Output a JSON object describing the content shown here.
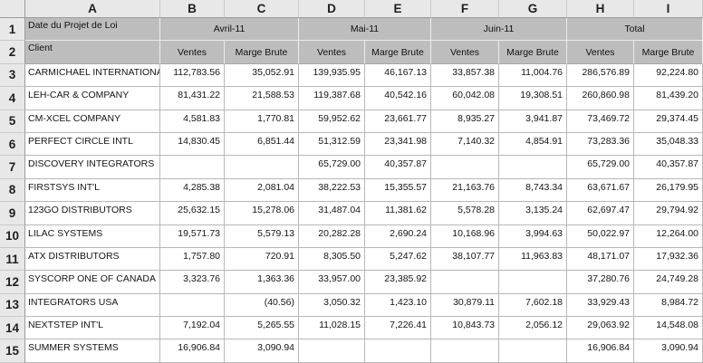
{
  "grid": {
    "column_letters": [
      "A",
      "B",
      "C",
      "D",
      "E",
      "F",
      "G",
      "H",
      "I"
    ],
    "row_numbers": [
      "1",
      "2",
      "3",
      "4",
      "5",
      "6",
      "7",
      "8",
      "9",
      "10",
      "11",
      "12",
      "13",
      "14",
      "15"
    ]
  },
  "table": {
    "title_cell": "Date du Projet de Loi",
    "client_header": "Client",
    "month_groups": [
      {
        "label": "Avril-11"
      },
      {
        "label": "Mai-11"
      },
      {
        "label": "Juin-11"
      },
      {
        "label": "Total"
      }
    ],
    "sub_headers": [
      "Ventes",
      "Marge Brute",
      "Ventes",
      "Marge Brute",
      "Ventes",
      "Marge Brute",
      "Ventes",
      "Marge Brute"
    ],
    "rows": [
      {
        "client": "CARMICHAEL INTERNATIONAL",
        "values": [
          "112,783.56",
          "35,052.91",
          "139,935.95",
          "46,167.13",
          "33,857.38",
          "11,004.76",
          "286,576.89",
          "92,224.80"
        ]
      },
      {
        "client": "LEH-CAR & COMPANY",
        "values": [
          "81,431.22",
          "21,588.53",
          "119,387.68",
          "40,542.16",
          "60,042.08",
          "19,308.51",
          "260,860.98",
          "81,439.20"
        ]
      },
      {
        "client": "CM-XCEL COMPANY",
        "values": [
          "4,581.83",
          "1,770.81",
          "59,952.62",
          "23,661.77",
          "8,935.27",
          "3,941.87",
          "73,469.72",
          "29,374.45"
        ]
      },
      {
        "client": "PERFECT CIRCLE INTL",
        "values": [
          "14,830.45",
          "6,851.44",
          "51,312.59",
          "23,341.98",
          "7,140.32",
          "4,854.91",
          "73,283.36",
          "35,048.33"
        ]
      },
      {
        "client": "DISCOVERY INTEGRATORS",
        "values": [
          "",
          "",
          "65,729.00",
          "40,357.87",
          "",
          "",
          "65,729.00",
          "40,357.87"
        ]
      },
      {
        "client": "FIRSTSYS INT'L",
        "values": [
          "4,285.38",
          "2,081.04",
          "38,222.53",
          "15,355.57",
          "21,163.76",
          "8,743.34",
          "63,671.67",
          "26,179.95"
        ]
      },
      {
        "client": "123GO DISTRIBUTORS",
        "values": [
          "25,632.15",
          "15,278.06",
          "31,487.04",
          "11,381.62",
          "5,578.28",
          "3,135.24",
          "62,697.47",
          "29,794.92"
        ]
      },
      {
        "client": "LILAC SYSTEMS",
        "values": [
          "19,571.73",
          "5,579.13",
          "20,282.28",
          "2,690.24",
          "10,168.96",
          "3,994.63",
          "50,022.97",
          "12,264.00"
        ]
      },
      {
        "client": "ATX DISTRIBUTORS",
        "values": [
          "1,757.80",
          "720.91",
          "8,305.50",
          "5,247.62",
          "38,107.77",
          "11,963.83",
          "48,171.07",
          "17,932.36"
        ]
      },
      {
        "client": "SYSCORP ONE OF CANADA",
        "values": [
          "3,323.76",
          "1,363.36",
          "33,957.00",
          "23,385.92",
          "",
          "",
          "37,280.76",
          "24,749.28"
        ]
      },
      {
        "client": "INTEGRATORS USA",
        "values": [
          "",
          "(40.56)",
          "3,050.32",
          "1,423.10",
          "30,879.11",
          "7,602.18",
          "33,929.43",
          "8,984.72"
        ]
      },
      {
        "client": "NEXTSTEP INT'L",
        "values": [
          "7,192.04",
          "5,265.55",
          "11,028.15",
          "7,226.41",
          "10,843.73",
          "2,056.12",
          "29,063.92",
          "14,548.08"
        ]
      },
      {
        "client": "SUMMER SYSTEMS",
        "values": [
          "16,906.84",
          "3,090.94",
          "",
          "",
          "",
          "",
          "16,906.84",
          "3,090.94"
        ]
      }
    ]
  },
  "colors": {
    "header_chrome_fill": "#e8e8e8",
    "table_header_fill": "#bdbdbd",
    "gridline": "#b7b7b7",
    "text": "#141414"
  }
}
